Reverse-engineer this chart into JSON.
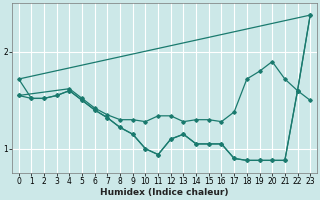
{
  "xlabel": "Humidex (Indice chaleur)",
  "background_color": "#cce8e8",
  "grid_color": "#ffffff",
  "line_color": "#1a7a6e",
  "xlim": [
    -0.5,
    23.5
  ],
  "ylim": [
    0.75,
    2.5
  ],
  "yticks": [
    1,
    2
  ],
  "xticks": [
    0,
    1,
    2,
    3,
    4,
    5,
    6,
    7,
    8,
    9,
    10,
    11,
    12,
    13,
    14,
    15,
    16,
    17,
    18,
    19,
    20,
    21,
    22,
    23
  ],
  "series": {
    "top": {
      "x": [
        0,
        23
      ],
      "y": [
        1.72,
        2.38
      ],
      "markers": false
    },
    "upper_mid": {
      "x": [
        0,
        4,
        5,
        6,
        7,
        8,
        9,
        10,
        11,
        12,
        13,
        14,
        15,
        16,
        17,
        18,
        19,
        20,
        21,
        22,
        23
      ],
      "y": [
        1.55,
        1.62,
        1.52,
        1.42,
        1.35,
        1.3,
        1.3,
        1.28,
        1.34,
        1.34,
        1.28,
        1.3,
        1.3,
        1.28,
        1.38,
        1.72,
        1.8,
        1.9,
        1.72,
        1.6,
        1.5
      ],
      "markers": true
    },
    "lower_mid": {
      "x": [
        0,
        1,
        2,
        3,
        4,
        5,
        6,
        7,
        8,
        9,
        10,
        11,
        12,
        13,
        14,
        15,
        16,
        17,
        18,
        19,
        20,
        21,
        22,
        23
      ],
      "y": [
        1.55,
        1.52,
        1.52,
        1.55,
        1.6,
        1.5,
        1.4,
        1.32,
        1.22,
        1.15,
        1.0,
        0.94,
        1.1,
        1.15,
        1.05,
        1.05,
        1.05,
        0.9,
        0.88,
        0.88,
        0.88,
        0.88,
        1.6,
        2.38
      ],
      "markers": true
    },
    "bottom": {
      "x": [
        0,
        1,
        2,
        3,
        4,
        5,
        6,
        7,
        8,
        9,
        10,
        11,
        12,
        13,
        14,
        15,
        16,
        17,
        18,
        19,
        20,
        21,
        22,
        23
      ],
      "y": [
        1.72,
        1.52,
        1.52,
        1.55,
        1.6,
        1.5,
        1.4,
        1.32,
        1.22,
        1.15,
        1.0,
        0.94,
        1.1,
        1.15,
        1.05,
        1.05,
        1.05,
        0.9,
        0.88,
        0.88,
        0.88,
        0.88,
        1.6,
        2.38
      ],
      "markers": true
    }
  }
}
